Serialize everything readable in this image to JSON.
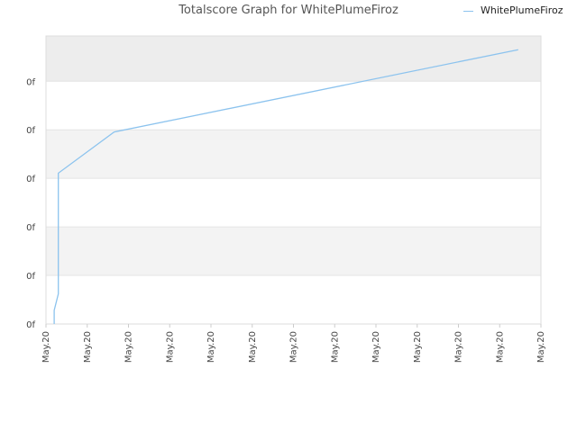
{
  "chart_data": {
    "type": "line",
    "title": "Totalscore Graph for WhitePlumeFiroz",
    "xlabel": "",
    "ylabel": "",
    "y_tick_labels": [
      "0f",
      "0f",
      "0f",
      "0f",
      "0f",
      "0f"
    ],
    "x_tick_labels": [
      "May.20",
      "May.20",
      "May.20",
      "May.20",
      "May.20",
      "May.20",
      "May.20",
      "May.20",
      "May.20",
      "May.20",
      "May.20",
      "May.20",
      "May.20"
    ],
    "legend_position": "top-right",
    "grid": true,
    "series": [
      {
        "name": "WhitePlumeFiroz",
        "color": "#8cc3ee",
        "x": [
          0.2,
          0.2,
          0.3,
          0.3,
          0.3,
          1.65,
          11.45
        ],
        "y": [
          0,
          0.5,
          1.1,
          2.3,
          5.5,
          7.0,
          10.0
        ]
      }
    ],
    "xlim": [
      0,
      12
    ],
    "ylim": [
      0,
      10.5
    ],
    "y_tick_values": [
      0,
      1.77,
      3.54,
      5.31,
      7.08,
      8.85
    ],
    "band_colors": [
      "#f3f3f3",
      "#ffffff",
      "#ededed"
    ]
  }
}
